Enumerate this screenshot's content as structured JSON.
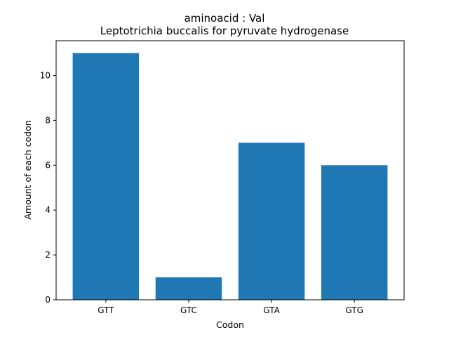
{
  "chart_data": {
    "type": "bar",
    "title": "aminoacid : Val",
    "subtitle": "Leptotrichia buccalis for pyruvate hydrogenase",
    "xlabel": "Codon",
    "ylabel": "Amount of each codon",
    "categories": [
      "GTT",
      "GTC",
      "GTA",
      "GTG"
    ],
    "values": [
      11,
      1,
      7,
      6
    ],
    "ylim": [
      0,
      11.55
    ],
    "yticks": [
      0,
      2,
      4,
      6,
      8,
      10
    ],
    "bar_color": "#1f77b4",
    "grid": false,
    "legend": "none"
  }
}
